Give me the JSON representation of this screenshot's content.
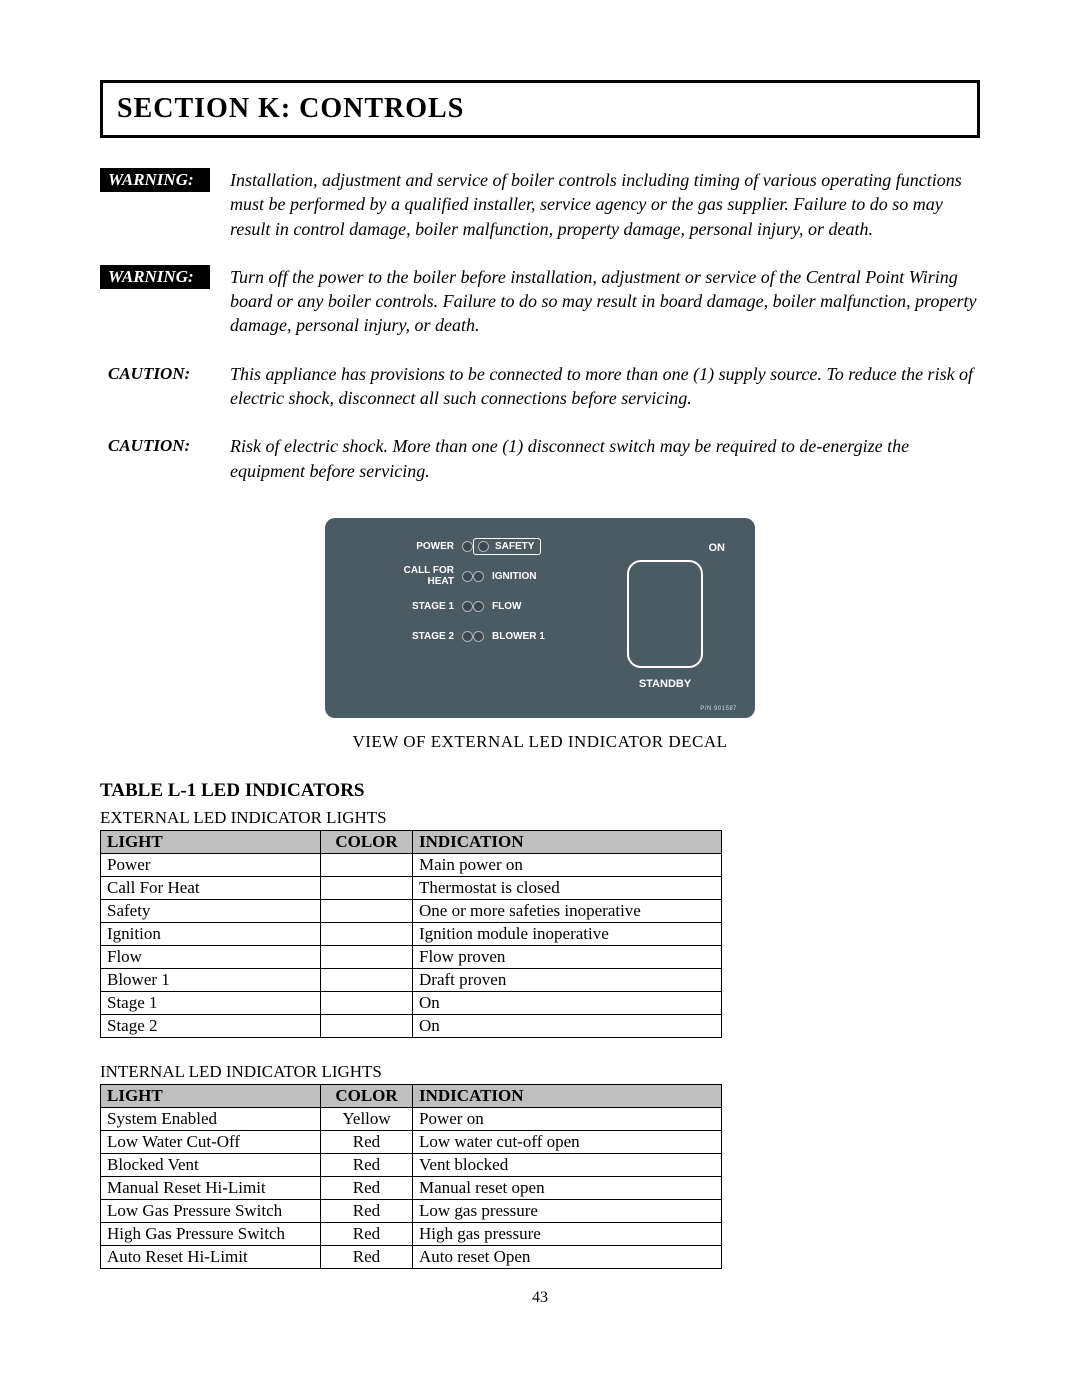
{
  "section_title": "SECTION K: CONTROLS",
  "notices": [
    {
      "label": "WARNING:",
      "kind": "warning",
      "text": "Installation, adjustment and service of boiler controls including timing of various operating functions must be performed by a qualified installer, service agency or the gas supplier. Failure to do so may result in control damage, boiler malfunction, property damage, personal injury, or death."
    },
    {
      "label": "WARNING:",
      "kind": "warning",
      "text": "Turn off the power to the boiler before installation, adjustment or service of the Central Point Wiring board or any boiler controls. Failure to do so may result in board damage, boiler malfunction, property damage, personal injury, or death."
    },
    {
      "label": "CAUTION:",
      "kind": "caution",
      "text": "This appliance has provisions to be connected to more than one (1) supply source. To reduce the risk of electric shock, disconnect all such connections before servicing."
    },
    {
      "label": "CAUTION:",
      "kind": "caution",
      "text": "Risk of electric shock. More than one (1) disconnect switch may be required to de-energize the equipment before servicing."
    }
  ],
  "decal": {
    "left": [
      "POWER",
      "CALL FOR\nHEAT",
      "STAGE 1",
      "STAGE 2"
    ],
    "right": [
      "SAFETY",
      "IGNITION",
      "FLOW",
      "BLOWER 1"
    ],
    "on": "ON",
    "standby": "STANDBY",
    "pn": "P/N 901587",
    "caption": "VIEW OF EXTERNAL LED INDICATOR DECAL",
    "bg": "#4a5b63"
  },
  "table_title": "TABLE  L-1 LED INDICATORS",
  "ext_label": "EXTERNAL LED INDICATOR LIGHTS",
  "int_label": "INTERNAL LED INDICATOR LIGHTS",
  "headers": {
    "light": "LIGHT",
    "color": "COLOR",
    "indication": "INDICATION"
  },
  "ext_rows": [
    {
      "light": "Power",
      "color": "",
      "indication": "Main power on"
    },
    {
      "light": "Call For Heat",
      "color": "",
      "indication": "Thermostat is closed"
    },
    {
      "light": "Safety",
      "color": "",
      "indication": "One or more safeties inoperative"
    },
    {
      "light": "Ignition",
      "color": "",
      "indication": "Ignition module inoperative"
    },
    {
      "light": "Flow",
      "color": "",
      "indication": "Flow proven"
    },
    {
      "light": "Blower 1",
      "color": "",
      "indication": "Draft proven"
    },
    {
      "light": "Stage 1",
      "color": "",
      "indication": "On"
    },
    {
      "light": "Stage 2",
      "color": "",
      "indication": "On"
    }
  ],
  "int_rows": [
    {
      "light": "System Enabled",
      "color": "Yellow",
      "indication": "Power on"
    },
    {
      "light": "Low Water Cut-Off",
      "color": "Red",
      "indication": "Low water cut-off open"
    },
    {
      "light": "Blocked Vent",
      "color": "Red",
      "indication": "Vent blocked"
    },
    {
      "light": "Manual Reset Hi-Limit",
      "color": "Red",
      "indication": "Manual reset open"
    },
    {
      "light": "Low Gas Pressure Switch",
      "color": "Red",
      "indication": "Low gas pressure"
    },
    {
      "light": "High Gas Pressure Switch",
      "color": "Red",
      "indication": "High gas pressure"
    },
    {
      "light": "Auto Reset Hi-Limit",
      "color": "Red",
      "indication": "Auto reset Open"
    }
  ],
  "page_number": "43"
}
